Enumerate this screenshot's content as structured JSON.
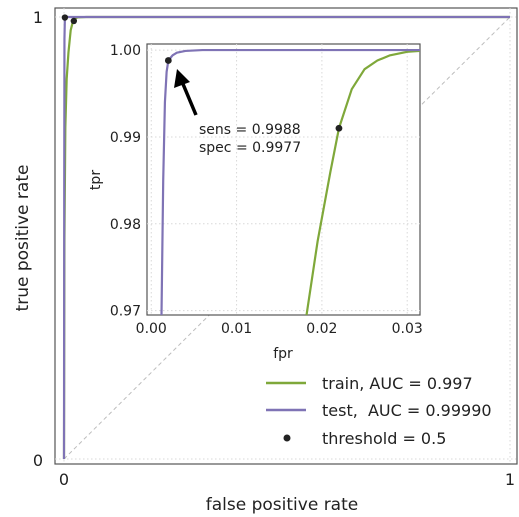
{
  "chart_data": [
    {
      "type": "line",
      "xlabel": "false positive rate",
      "ylabel": "true positive rate",
      "xlim": [
        0,
        1
      ],
      "ylim": [
        0,
        1
      ],
      "x_ticks": [
        "0",
        "1"
      ],
      "y_ticks": [
        "0",
        "1"
      ],
      "grid": true,
      "diagonal_reference": true,
      "series": [
        {
          "name": "train, AUC = 0.997",
          "color": "#7fa83a",
          "points": [
            [
              0,
              0
            ],
            [
              0.001,
              0.5
            ],
            [
              0.003,
              0.75
            ],
            [
              0.006,
              0.86
            ],
            [
              0.01,
              0.92
            ],
            [
              0.015,
              0.97
            ],
            [
              0.02,
              0.99
            ],
            [
              0.025,
              0.996
            ],
            [
              0.03,
              0.999
            ],
            [
              0.05,
              1.0
            ],
            [
              1,
              1
            ]
          ]
        },
        {
          "name": "test,  AUC = 0.99990",
          "color": "#7f73b5",
          "points": [
            [
              0,
              0
            ],
            [
              0.0005,
              0.6
            ],
            [
              0.001,
              0.95
            ],
            [
              0.002,
              0.997
            ],
            [
              0.003,
              0.9995
            ],
            [
              0.005,
              1.0
            ],
            [
              1,
              1
            ]
          ]
        }
      ],
      "markers": {
        "name": "threshold = 0.5",
        "color": "#222222",
        "points": [
          [
            0.002,
            0.9988
          ],
          [
            0.022,
            0.991
          ]
        ]
      },
      "legend_position": "bottom-right"
    },
    {
      "type": "line",
      "xlabel": "fpr",
      "ylabel": "tpr",
      "xlim": [
        -0.0005,
        0.0315
      ],
      "ylim": [
        0.9695,
        1.0007
      ],
      "x_ticks": [
        0.0,
        0.01,
        0.02,
        0.03
      ],
      "x_tick_labels": [
        "0.00",
        "0.01",
        "0.02",
        "0.03"
      ],
      "y_ticks": [
        0.97,
        0.98,
        0.99,
        1.0
      ],
      "y_tick_labels": [
        "0.97",
        "0.98",
        "0.99",
        "1.00"
      ],
      "grid": true,
      "series": [
        {
          "name": "train",
          "color": "#7fa83a",
          "points": [
            [
              0.0182,
              0.9695
            ],
            [
              0.0195,
              0.978
            ],
            [
              0.021,
              0.986
            ],
            [
              0.022,
              0.991
            ],
            [
              0.0235,
              0.9955
            ],
            [
              0.025,
              0.9978
            ],
            [
              0.0265,
              0.9988
            ],
            [
              0.028,
              0.9994
            ],
            [
              0.03,
              0.9998
            ],
            [
              0.0315,
              0.9999
            ]
          ]
        },
        {
          "name": "test",
          "color": "#7f73b5",
          "points": [
            [
              0.0012,
              0.9695
            ],
            [
              0.0014,
              0.985
            ],
            [
              0.0016,
              0.994
            ],
            [
              0.0018,
              0.9975
            ],
            [
              0.002,
              0.9988
            ],
            [
              0.0025,
              0.9994
            ],
            [
              0.003,
              0.9997
            ],
            [
              0.004,
              0.9999
            ],
            [
              0.006,
              1.0
            ],
            [
              0.0315,
              1.0
            ]
          ]
        }
      ],
      "markers": {
        "color": "#222222",
        "points": [
          [
            0.002,
            0.9988
          ],
          [
            0.022,
            0.991
          ]
        ]
      },
      "annotation": {
        "lines": [
          "sens = 0.9988",
          "spec = 0.9977"
        ],
        "arrow_target": [
          0.002,
          0.9988
        ]
      }
    }
  ]
}
